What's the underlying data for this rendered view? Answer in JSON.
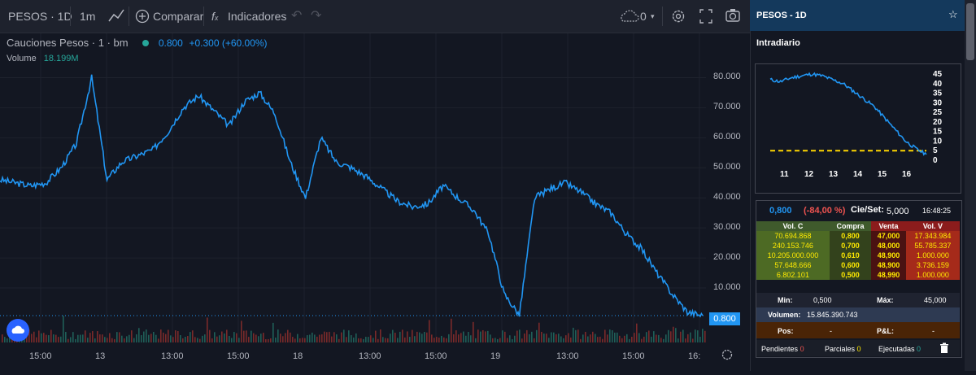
{
  "toolbar": {
    "symbol": "PESOS · 1D",
    "interval": "1m",
    "compare": "Comparar",
    "indicators": "Indicadores",
    "cloud_count": "0"
  },
  "legend": {
    "title": "Cauciones Pesos · 1 · bm",
    "price": "0.800",
    "change": "+0.300 (+60.00%)",
    "volume_label": "Volume",
    "volume_value": "18.199M"
  },
  "colors": {
    "line": "#2196f3",
    "up": "#26a69a",
    "down": "#ef5350",
    "accent": "#14395c"
  },
  "chart_data": {
    "type": "line",
    "y_ticks": [
      "80.000",
      "70.000",
      "60.000",
      "50.000",
      "40.000",
      "30.000",
      "20.000",
      "10.000"
    ],
    "last_price": "0.800",
    "x_ticks": [
      "15:00",
      "13",
      "13:00",
      "15:00",
      "18",
      "13:00",
      "15:00",
      "19",
      "13:00",
      "15:00",
      "16:"
    ],
    "ylim": [
      0,
      85
    ],
    "values": [
      46,
      45,
      44,
      45,
      50,
      58,
      80,
      46,
      52,
      54,
      56,
      62,
      70,
      74,
      69,
      64,
      72,
      75,
      68,
      52,
      40,
      60,
      52,
      50,
      47,
      43,
      39,
      37,
      38,
      44,
      40,
      36,
      28,
      8,
      1,
      40,
      43,
      45,
      42,
      38,
      35,
      28,
      23,
      15,
      8,
      2,
      0.8
    ]
  },
  "panel": {
    "title": "PESOS - 1D",
    "intradiario": "Intradiario",
    "mini_y": [
      "45",
      "40",
      "35",
      "30",
      "25",
      "20",
      "15",
      "10",
      "5",
      "0"
    ],
    "mini_x": [
      "11",
      "12",
      "13",
      "14",
      "15",
      "16"
    ],
    "mini_values": [
      42,
      41,
      43,
      44,
      45,
      44,
      42,
      40,
      36,
      32,
      28,
      22,
      16,
      10,
      6,
      3
    ],
    "mini_ref": 5,
    "last": "0,800",
    "pct": "(-84,00 %)",
    "cie_label": "Cie/Set:",
    "cie_value": "5,000",
    "time": "16:48:25",
    "headers": [
      "Vol. C",
      "Compra",
      "Venta",
      "Vol. V"
    ],
    "rows": [
      [
        "70.694.868",
        "0,800",
        "47,000",
        "17.343.984"
      ],
      [
        "240.153.746",
        "0,700",
        "48,000",
        "55.785.337"
      ],
      [
        "10.205.000.000",
        "0,610",
        "48,900",
        "1.000.000"
      ],
      [
        "57.648.666",
        "0,600",
        "48,900",
        "3.736.159"
      ],
      [
        "6.802.101",
        "0,500",
        "48,990",
        "1.000.000"
      ]
    ],
    "min_label": "Min:",
    "min_value": "0,500",
    "max_label": "Máx:",
    "max_value": "45,000",
    "volumen_label": "Volumen:",
    "volumen_value": "15.845.390.743",
    "pos_label": "Pos:",
    "pos_value": "-",
    "pl_label": "P&L:",
    "pl_value": "-",
    "pendientes": "Pendientes",
    "pendientes_n": "0",
    "parciales": "Parciales",
    "parciales_n": "0",
    "ejecutadas": "Ejecutadas",
    "ejecutadas_n": "0"
  }
}
